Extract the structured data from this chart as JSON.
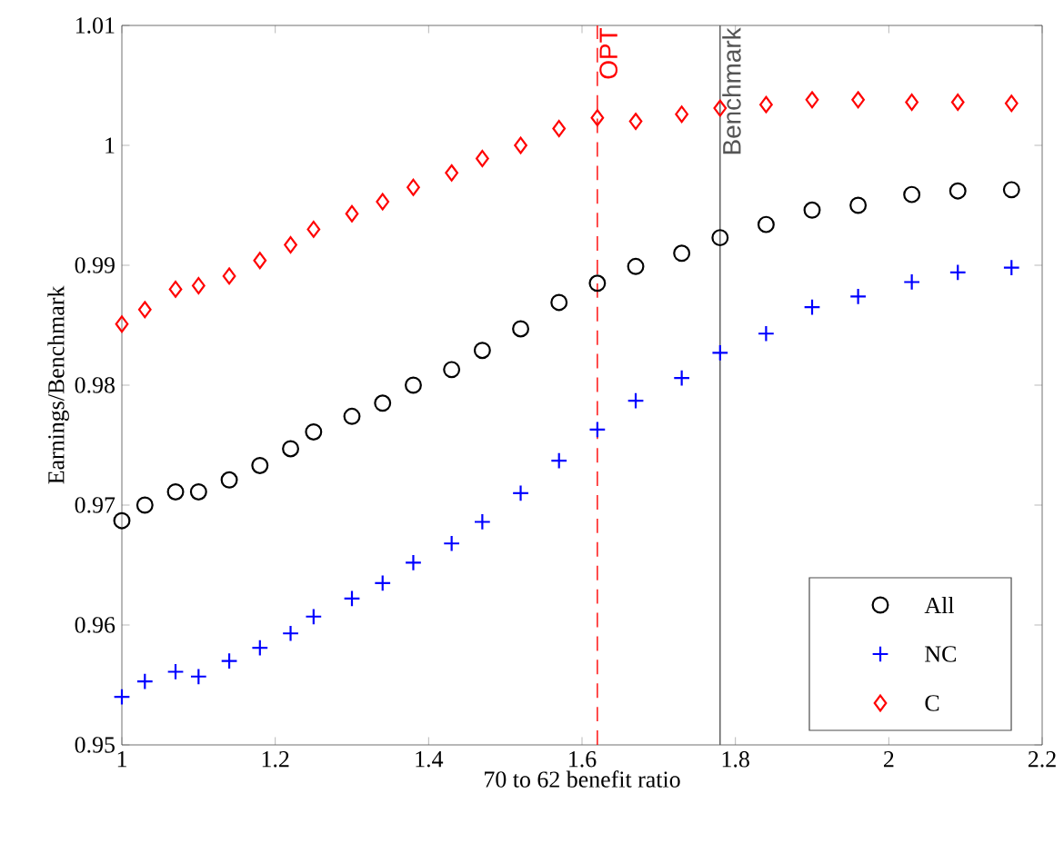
{
  "chart_data": {
    "type": "scatter",
    "xlabel": "70 to 62 benefit ratio",
    "ylabel": "Earnings/Benchmark",
    "x": [
      1.0,
      1.03,
      1.07,
      1.1,
      1.14,
      1.18,
      1.22,
      1.25,
      1.3,
      1.34,
      1.38,
      1.43,
      1.47,
      1.52,
      1.57,
      1.62,
      1.67,
      1.73,
      1.78,
      1.84,
      1.9,
      1.96,
      2.03,
      2.09,
      2.16
    ],
    "series": [
      {
        "name": "All",
        "color": "#000000",
        "marker": "circle",
        "values": [
          0.9687,
          0.97,
          0.9711,
          0.9711,
          0.9721,
          0.9733,
          0.9747,
          0.9761,
          0.9774,
          0.9785,
          0.98,
          0.9813,
          0.9829,
          0.9847,
          0.9869,
          0.9885,
          0.9899,
          0.991,
          0.9923,
          0.9934,
          0.9946,
          0.995,
          0.9959,
          0.9962,
          0.9963
        ]
      },
      {
        "name": "NC",
        "color": "#0000ff",
        "marker": "cross",
        "values": [
          0.954,
          0.9553,
          0.9561,
          0.9557,
          0.957,
          0.9581,
          0.9593,
          0.9607,
          0.9622,
          0.9635,
          0.9652,
          0.9668,
          0.9686,
          0.971,
          0.9737,
          0.9763,
          0.9787,
          0.9806,
          0.9827,
          0.9843,
          0.9865,
          0.9874,
          0.9886,
          0.9894,
          0.9898
        ]
      },
      {
        "name": "C",
        "color": "#ff0000",
        "marker": "diamond",
        "values": [
          0.9851,
          0.9863,
          0.988,
          0.9883,
          0.9891,
          0.9904,
          0.9917,
          0.993,
          0.9943,
          0.9953,
          0.9965,
          0.9977,
          0.9989,
          1.0,
          1.0014,
          1.0023,
          1.002,
          1.0026,
          1.0031,
          1.0034,
          1.0038,
          1.0038,
          1.0036,
          1.0036,
          1.0035
        ]
      }
    ],
    "xlim": [
      1,
      2.2
    ],
    "xticks": [
      1,
      1.2,
      1.4,
      1.6,
      1.8,
      2,
      2.2
    ],
    "ylim": [
      0.95,
      1.01
    ],
    "yticks": [
      0.95,
      0.96,
      0.97,
      0.98,
      0.99,
      1,
      1.01
    ],
    "ref_lines": [
      {
        "axis": "x",
        "value": 1.62,
        "label": "OPT",
        "color": "#ff0000",
        "line_style": "dashed"
      },
      {
        "axis": "x",
        "value": 1.78,
        "label": "Benchmark",
        "color": "#555555",
        "line_style": "solid"
      }
    ],
    "grid": false,
    "legend": "bottom right"
  }
}
